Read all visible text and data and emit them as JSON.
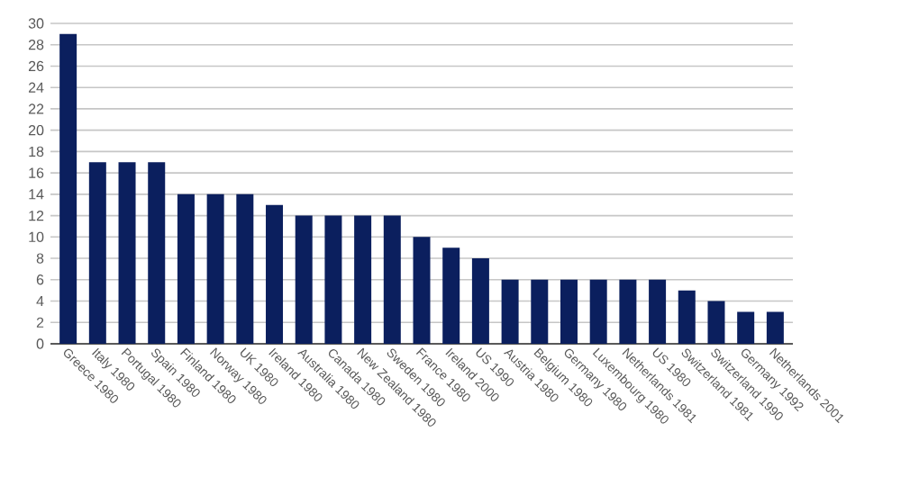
{
  "chart_data": {
    "type": "bar",
    "categories": [
      "Greece 1980",
      "Italy 1980",
      "Portugal 1980",
      "Spain 1980",
      "Finland 1980",
      "Norway 1980",
      "UK 1980",
      "Ireland 1980",
      "Australia 1980",
      "Canada 1980",
      "New Zealand 1980",
      "Sweden 1980",
      "France 1980",
      "Ireland 2000",
      "US 1990",
      "Austria 1980",
      "Belgium 1980",
      "Germany 1980",
      "Luxembourg 1980",
      "Netherlands 1981",
      "US 1980",
      "Switzerland 1981",
      "Switzerland 1990",
      "Germany 1992",
      "Netherlands 2001"
    ],
    "values": [
      29,
      17,
      17,
      17,
      14,
      14,
      14,
      13,
      12,
      12,
      12,
      12,
      10,
      9,
      8,
      6,
      6,
      6,
      6,
      6,
      6,
      5,
      4,
      3,
      3
    ],
    "color": "#0b1f5e",
    "ylim": [
      0,
      30
    ],
    "yticks": [
      0,
      2,
      4,
      6,
      8,
      10,
      12,
      14,
      16,
      18,
      20,
      22,
      24,
      26,
      28,
      30
    ],
    "grid": "y"
  }
}
